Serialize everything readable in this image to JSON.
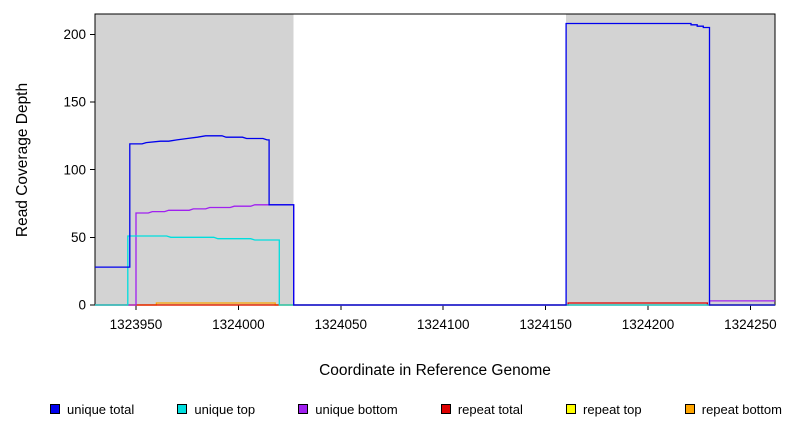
{
  "figure": {
    "x_axis_label": "Coordinate in Reference Genome",
    "y_axis_label": "Read Coverage Depth"
  },
  "chart_data": {
    "type": "line",
    "title": "",
    "xlabel": "Coordinate in Reference Genome",
    "ylabel": "Read Coverage Depth",
    "xlim": [
      1323930,
      1324262
    ],
    "ylim": [
      0,
      215
    ],
    "xticks": [
      1323950,
      1324000,
      1324050,
      1324100,
      1324150,
      1324200,
      1324250
    ],
    "yticks": [
      0,
      50,
      100,
      150,
      200
    ],
    "grid": false,
    "legend_position": "bottom",
    "plot_background": "#ffffff",
    "shaded_regions": [
      {
        "name": "repeat-region-left",
        "x1": 1323930,
        "x2": 1324027,
        "color": "#d3d3d3"
      },
      {
        "name": "repeat-region-right",
        "x1": 1324160,
        "x2": 1324262,
        "color": "#d3d3d3"
      }
    ],
    "series": [
      {
        "name": "unique total",
        "color": "#0000ee",
        "points": [
          [
            1323930,
            28
          ],
          [
            1323947,
            28
          ],
          [
            1323947,
            119
          ],
          [
            1323953,
            119
          ],
          [
            1323955,
            120
          ],
          [
            1323962,
            121
          ],
          [
            1323966,
            121
          ],
          [
            1323970,
            122
          ],
          [
            1323975,
            123
          ],
          [
            1323980,
            124
          ],
          [
            1323984,
            125
          ],
          [
            1323992,
            125
          ],
          [
            1323994,
            124
          ],
          [
            1324002,
            124
          ],
          [
            1324004,
            123
          ],
          [
            1324012,
            123
          ],
          [
            1324014,
            122
          ],
          [
            1324015,
            122
          ],
          [
            1324015,
            74
          ],
          [
            1324027,
            74
          ],
          [
            1324027,
            0
          ],
          [
            1324160,
            0
          ],
          [
            1324160,
            208
          ],
          [
            1324221,
            208
          ],
          [
            1324221,
            207
          ],
          [
            1324224,
            207
          ],
          [
            1324224,
            206
          ],
          [
            1324227,
            206
          ],
          [
            1324227,
            205
          ],
          [
            1324230,
            205
          ],
          [
            1324230,
            0
          ],
          [
            1324262,
            0
          ]
        ]
      },
      {
        "name": "unique top",
        "color": "#00dede",
        "points": [
          [
            1323930,
            0
          ],
          [
            1323946,
            0
          ],
          [
            1323946,
            51
          ],
          [
            1323965,
            51
          ],
          [
            1323967,
            50
          ],
          [
            1323988,
            50
          ],
          [
            1323990,
            49
          ],
          [
            1324006,
            49
          ],
          [
            1324008,
            48
          ],
          [
            1324020,
            48
          ],
          [
            1324020,
            0
          ],
          [
            1324262,
            0
          ]
        ]
      },
      {
        "name": "unique bottom",
        "color": "#a020f0",
        "points": [
          [
            1323930,
            0
          ],
          [
            1323950,
            0
          ],
          [
            1323950,
            68
          ],
          [
            1323956,
            68
          ],
          [
            1323958,
            69
          ],
          [
            1323964,
            69
          ],
          [
            1323966,
            70
          ],
          [
            1323976,
            70
          ],
          [
            1323978,
            71
          ],
          [
            1323984,
            71
          ],
          [
            1323986,
            72
          ],
          [
            1323996,
            72
          ],
          [
            1323998,
            73
          ],
          [
            1324006,
            73
          ],
          [
            1324008,
            74
          ],
          [
            1324027,
            74
          ],
          [
            1324027,
            0
          ],
          [
            1324230,
            0
          ],
          [
            1324230,
            3
          ],
          [
            1324262,
            3
          ]
        ]
      },
      {
        "name": "repeat total",
        "color": "#dd0000",
        "points": [
          [
            1323930,
            0
          ],
          [
            1324161,
            0
          ],
          [
            1324161,
            1.5
          ],
          [
            1324229,
            1.5
          ],
          [
            1324229,
            0
          ],
          [
            1324262,
            0
          ]
        ]
      },
      {
        "name": "repeat top",
        "color": "#ffff00",
        "points": [
          [
            1323930,
            0
          ],
          [
            1324262,
            0
          ]
        ]
      },
      {
        "name": "repeat bottom",
        "color": "#ffa500",
        "points": [
          [
            1323930,
            0
          ],
          [
            1323960,
            0
          ],
          [
            1323960,
            1.5
          ],
          [
            1324018,
            1.5
          ],
          [
            1324018,
            0
          ],
          [
            1324262,
            0
          ]
        ]
      }
    ]
  },
  "legend": {
    "items": [
      {
        "label": "unique total",
        "color": "#0000ee"
      },
      {
        "label": "unique top",
        "color": "#00dede"
      },
      {
        "label": "unique bottom",
        "color": "#a020f0"
      },
      {
        "label": "repeat total",
        "color": "#dd0000"
      },
      {
        "label": "repeat top",
        "color": "#ffff00"
      },
      {
        "label": "repeat bottom",
        "color": "#ffa500"
      }
    ]
  }
}
